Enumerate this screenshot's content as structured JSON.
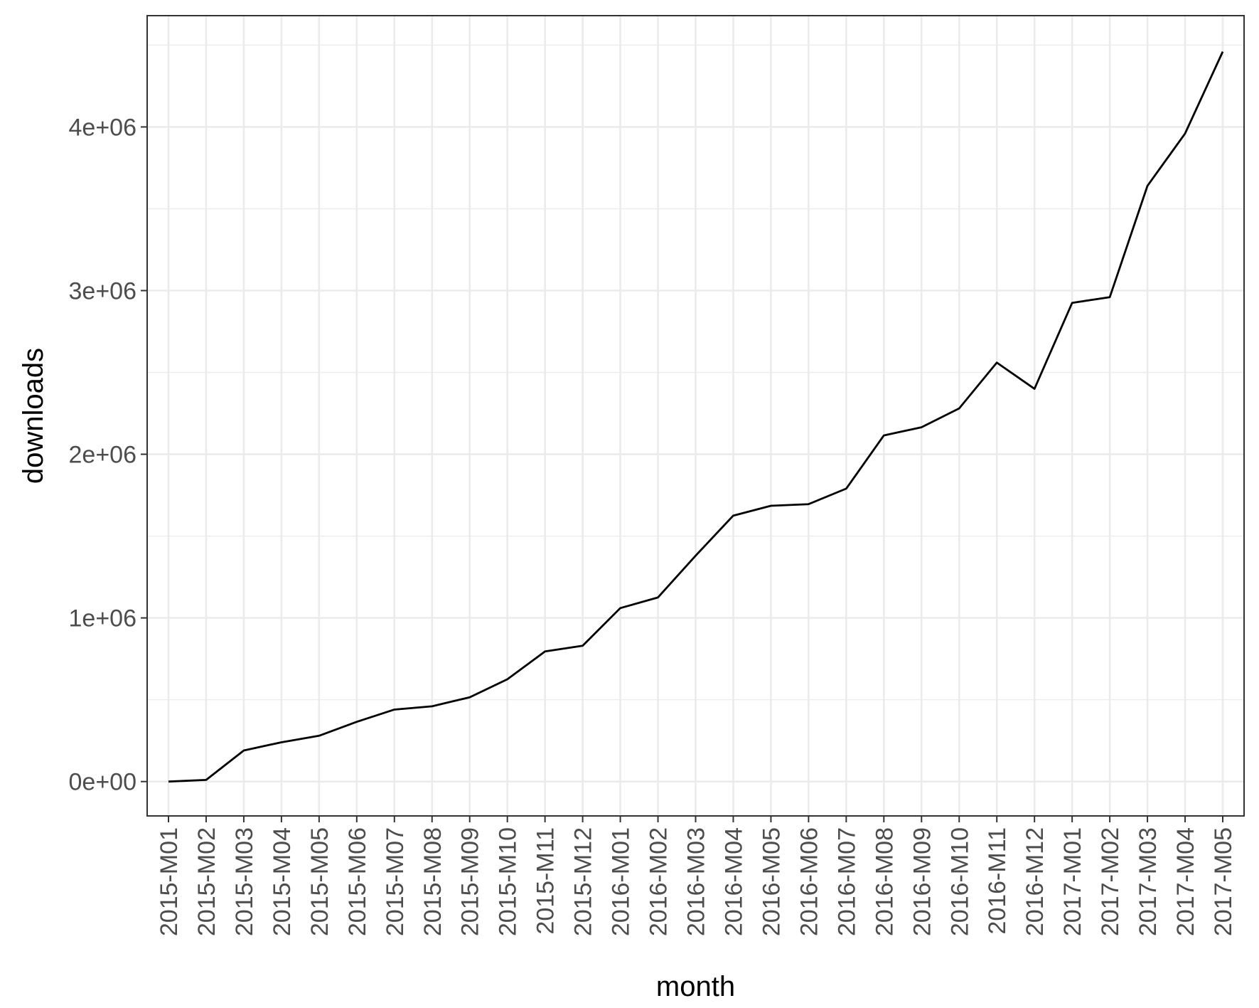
{
  "chart_data": {
    "type": "line",
    "title": "",
    "xlabel": "month",
    "ylabel": "downloads",
    "categories": [
      "2015-M01",
      "2015-M02",
      "2015-M03",
      "2015-M04",
      "2015-M05",
      "2015-M06",
      "2015-M07",
      "2015-M08",
      "2015-M09",
      "2015-M10",
      "2015-M11",
      "2015-M12",
      "2016-M01",
      "2016-M02",
      "2016-M03",
      "2016-M04",
      "2016-M05",
      "2016-M06",
      "2016-M07",
      "2016-M08",
      "2016-M09",
      "2016-M10",
      "2016-M11",
      "2016-M12",
      "2017-M01",
      "2017-M02",
      "2017-M03",
      "2017-M04",
      "2017-M05"
    ],
    "series": [
      {
        "values": [
          0,
          10000,
          190000,
          240000,
          280000,
          365000,
          440000,
          460000,
          515000,
          625000,
          795000,
          830000,
          1060000,
          1125000,
          1380000,
          1625000,
          1685000,
          1695000,
          1790000,
          2115000,
          2165000,
          2280000,
          2560000,
          2400000,
          2925000,
          2960000,
          3640000,
          3960000,
          4460000
        ]
      }
    ],
    "y_ticks": [
      0,
      1000000,
      2000000,
      3000000,
      4000000
    ],
    "y_tick_labels": [
      "0e+00",
      "1e+06",
      "2e+06",
      "3e+06",
      "4e+06"
    ],
    "ylim": [
      -210000,
      4680000
    ],
    "grid": true,
    "line_color": "#000000",
    "grid_color": "#ebebeb"
  }
}
